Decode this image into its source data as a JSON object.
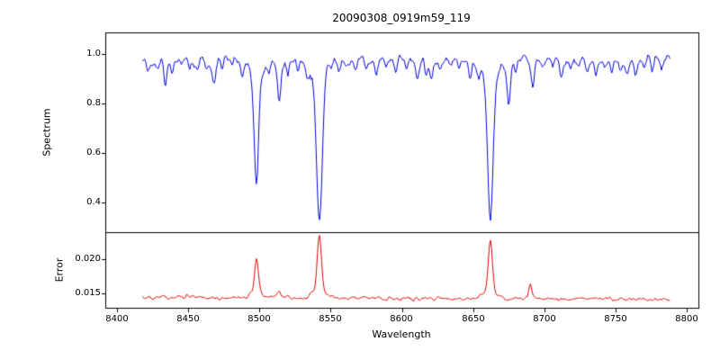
{
  "chart_data": [
    {
      "type": "line",
      "panel": "top",
      "series_name": "spectrum",
      "title": "20090308_0919m59_119",
      "ylabel": "Spectrum",
      "line_color": "#0000dd",
      "x_start": 8418,
      "x_end": 8788,
      "x_step": 0.74,
      "continuum": 0.985,
      "noise_sigma": 0.009,
      "ylim": [
        0.28,
        1.087
      ],
      "yticks": [
        1.0,
        0.8,
        0.6,
        0.4
      ],
      "ytick_labels": [
        "1.0",
        "0.8",
        "0.6",
        "0.4"
      ],
      "absorption_lines": [
        {
          "center": 8498.0,
          "depth": 0.52,
          "width": 1.5
        },
        {
          "center": 8542.1,
          "depth": 0.66,
          "width": 1.9
        },
        {
          "center": 8662.1,
          "depth": 0.65,
          "width": 1.8
        },
        {
          "center": 8422,
          "depth": 0.05,
          "width": 1.0
        },
        {
          "center": 8428,
          "depth": 0.04,
          "width": 0.9
        },
        {
          "center": 8434,
          "depth": 0.1,
          "width": 1.0
        },
        {
          "center": 8439,
          "depth": 0.06,
          "width": 0.9
        },
        {
          "center": 8445,
          "depth": 0.04,
          "width": 0.9
        },
        {
          "center": 8451,
          "depth": 0.06,
          "width": 1.0
        },
        {
          "center": 8457,
          "depth": 0.04,
          "width": 0.9
        },
        {
          "center": 8463,
          "depth": 0.05,
          "width": 0.9
        },
        {
          "center": 8468,
          "depth": 0.11,
          "width": 1.1
        },
        {
          "center": 8474,
          "depth": 0.05,
          "width": 0.9
        },
        {
          "center": 8481,
          "depth": 0.04,
          "width": 0.9
        },
        {
          "center": 8488,
          "depth": 0.07,
          "width": 1.0
        },
        {
          "center": 8507,
          "depth": 0.05,
          "width": 0.9
        },
        {
          "center": 8514,
          "depth": 0.18,
          "width": 1.1
        },
        {
          "center": 8520,
          "depth": 0.06,
          "width": 0.9
        },
        {
          "center": 8527,
          "depth": 0.04,
          "width": 0.9
        },
        {
          "center": 8534,
          "depth": 0.05,
          "width": 0.9
        },
        {
          "center": 8556,
          "depth": 0.05,
          "width": 0.9
        },
        {
          "center": 8561,
          "depth": 0.04,
          "width": 0.9
        },
        {
          "center": 8568,
          "depth": 0.04,
          "width": 0.9
        },
        {
          "center": 8575,
          "depth": 0.05,
          "width": 0.9
        },
        {
          "center": 8582,
          "depth": 0.08,
          "width": 1.0
        },
        {
          "center": 8589,
          "depth": 0.04,
          "width": 0.9
        },
        {
          "center": 8596,
          "depth": 0.05,
          "width": 0.9
        },
        {
          "center": 8603,
          "depth": 0.04,
          "width": 0.9
        },
        {
          "center": 8611,
          "depth": 0.08,
          "width": 1.0
        },
        {
          "center": 8617,
          "depth": 0.05,
          "width": 0.9
        },
        {
          "center": 8621,
          "depth": 0.09,
          "width": 1.0
        },
        {
          "center": 8627,
          "depth": 0.05,
          "width": 0.9
        },
        {
          "center": 8634,
          "depth": 0.04,
          "width": 0.9
        },
        {
          "center": 8640,
          "depth": 0.05,
          "width": 0.9
        },
        {
          "center": 8648,
          "depth": 0.08,
          "width": 1.0
        },
        {
          "center": 8654,
          "depth": 0.05,
          "width": 0.9
        },
        {
          "center": 8675,
          "depth": 0.17,
          "width": 1.1
        },
        {
          "center": 8680,
          "depth": 0.06,
          "width": 0.9
        },
        {
          "center": 8692,
          "depth": 0.12,
          "width": 1.0
        },
        {
          "center": 8699,
          "depth": 0.05,
          "width": 0.9
        },
        {
          "center": 8706,
          "depth": 0.04,
          "width": 0.9
        },
        {
          "center": 8712,
          "depth": 0.07,
          "width": 1.0
        },
        {
          "center": 8718,
          "depth": 0.05,
          "width": 0.9
        },
        {
          "center": 8724,
          "depth": 0.04,
          "width": 0.9
        },
        {
          "center": 8730,
          "depth": 0.05,
          "width": 0.9
        },
        {
          "center": 8736,
          "depth": 0.06,
          "width": 0.9
        },
        {
          "center": 8742,
          "depth": 0.04,
          "width": 0.9
        },
        {
          "center": 8747,
          "depth": 0.05,
          "width": 0.9
        },
        {
          "center": 8753,
          "depth": 0.04,
          "width": 0.9
        },
        {
          "center": 8758,
          "depth": 0.07,
          "width": 1.0
        },
        {
          "center": 8764,
          "depth": 0.05,
          "width": 0.9
        },
        {
          "center": 8770,
          "depth": 0.05,
          "width": 0.9
        },
        {
          "center": 8776,
          "depth": 0.04,
          "width": 0.9
        },
        {
          "center": 8782,
          "depth": 0.05,
          "width": 0.9
        }
      ]
    },
    {
      "type": "line",
      "panel": "bottom",
      "series_name": "error",
      "ylabel": "Error",
      "xlabel": "Wavelength",
      "line_color": "#e00000",
      "baseline": 0.01445,
      "baseline_slope": -8e-07,
      "noise_sigma": 0.00013,
      "ylim": [
        0.0129,
        0.0239
      ],
      "yticks": [
        0.02,
        0.015
      ],
      "ytick_labels": [
        "0.020",
        "0.015"
      ],
      "xlim": [
        8392,
        8808
      ],
      "xticks": [
        8400,
        8450,
        8500,
        8550,
        8600,
        8650,
        8700,
        8750,
        8800
      ],
      "xtick_labels": [
        "8400",
        "8450",
        "8500",
        "8550",
        "8600",
        "8650",
        "8700",
        "8750",
        "8800"
      ],
      "peaks": [
        {
          "center": 8498.0,
          "height": 0.0057,
          "width": 1.3
        },
        {
          "center": 8542.1,
          "height": 0.0092,
          "width": 1.4
        },
        {
          "center": 8662.1,
          "height": 0.0086,
          "width": 1.4
        },
        {
          "center": 8514.0,
          "height": 0.0009,
          "width": 1.0
        },
        {
          "center": 8690.0,
          "height": 0.002,
          "width": 0.9
        }
      ]
    }
  ],
  "colors": {
    "background": "#ffffff",
    "axis": "#000000",
    "spectrum_line": "#0000dd",
    "error_line": "#e00000"
  }
}
